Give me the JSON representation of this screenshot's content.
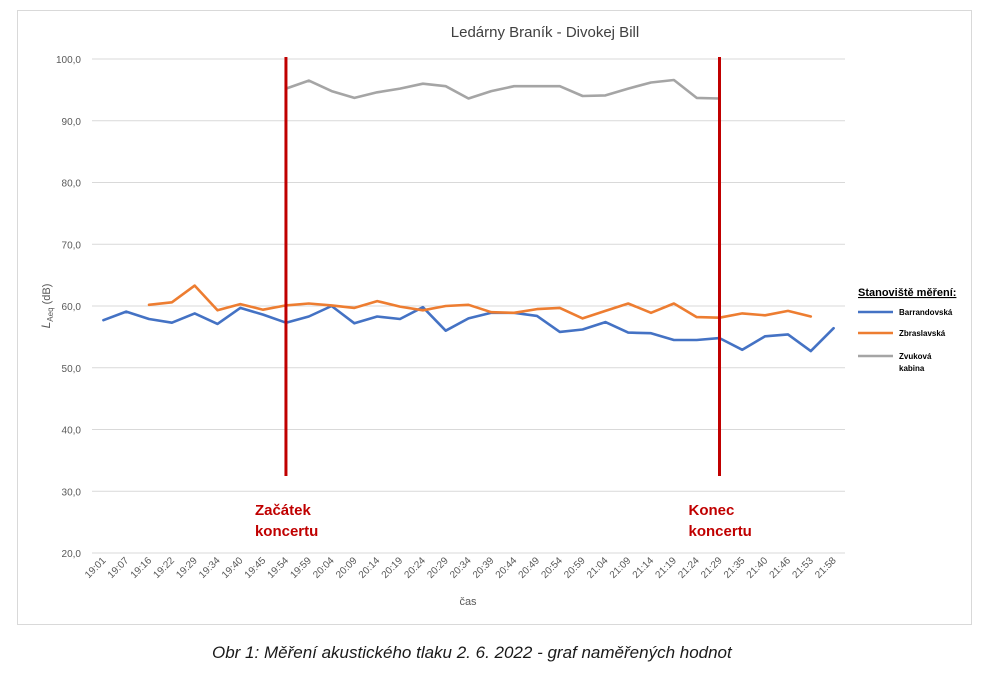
{
  "caption": "Obr 1: Měření akustického tlaku 2. 6. 2022 - graf naměřených hodnot",
  "chart_data": {
    "type": "line",
    "title": "Ledárny Braník - Divokej Bill",
    "xlabel": "čas",
    "ylabel_main": "L",
    "ylabel_sub": "Aeq",
    "ylabel_unit": " (dB)",
    "ylim": [
      20,
      100
    ],
    "yticks": [
      "20,0",
      "30,0",
      "40,0",
      "50,0",
      "60,0",
      "70,0",
      "80,0",
      "90,0",
      "100,0"
    ],
    "grid": "horizontal",
    "categories": [
      "19:01",
      "19:07",
      "19:16",
      "19:22",
      "19:29",
      "19:34",
      "19:40",
      "19:45",
      "19:54",
      "19:59",
      "20:04",
      "20:09",
      "20:14",
      "20:19",
      "20:24",
      "20:29",
      "20:34",
      "20:39",
      "20:44",
      "20:49",
      "20:54",
      "20:59",
      "21:04",
      "21:09",
      "21:14",
      "21:19",
      "21:24",
      "21:29",
      "21:35",
      "21:40",
      "21:46",
      "21:53",
      "21:58"
    ],
    "series": [
      {
        "name": "Barrandovská",
        "color": "#4472c4",
        "values": [
          57.7,
          59.1,
          57.9,
          57.3,
          58.8,
          57.1,
          59.7,
          58.6,
          57.3,
          58.3,
          60.0,
          57.2,
          58.3,
          57.9,
          59.8,
          56.0,
          58.0,
          58.9,
          58.9,
          58.4,
          55.8,
          56.2,
          57.4,
          55.7,
          55.6,
          54.5,
          54.5,
          54.8,
          52.9,
          55.1,
          55.4,
          52.7,
          56.4
        ]
      },
      {
        "name": "Zbraslavská",
        "color": "#ed7d31",
        "values": [
          null,
          null,
          60.2,
          60.6,
          63.3,
          59.3,
          60.3,
          59.4,
          60.1,
          60.4,
          60.1,
          59.7,
          60.8,
          59.9,
          59.3,
          60.0,
          60.2,
          59.0,
          58.9,
          59.5,
          59.7,
          58.0,
          59.2,
          60.4,
          58.9,
          60.4,
          58.2,
          58.1,
          58.8,
          58.5,
          59.2,
          58.3,
          null
        ]
      },
      {
        "name": "Zvuková kabina",
        "color": "#a5a5a5",
        "values": [
          null,
          null,
          null,
          null,
          null,
          null,
          null,
          null,
          95.2,
          96.5,
          94.8,
          93.7,
          94.6,
          95.2,
          96.0,
          95.6,
          93.6,
          94.8,
          95.6,
          95.6,
          95.6,
          94.0,
          94.1,
          95.2,
          96.2,
          96.6,
          93.7,
          93.6,
          null,
          null,
          null,
          null,
          null
        ]
      }
    ],
    "markers": [
      {
        "at": "19:54",
        "color": "#c00000",
        "label_lines": [
          "Začátek",
          "koncertu"
        ]
      },
      {
        "at": "21:29",
        "color": "#c00000",
        "label_lines": [
          "Konec",
          "koncertu"
        ]
      }
    ],
    "legend": {
      "title": "Stanoviště měření:",
      "position": "right",
      "entries": [
        {
          "lines": [
            "Barrandovská"
          ],
          "color": "#4472c4"
        },
        {
          "lines": [
            "Zbraslavská"
          ],
          "color": "#ed7d31"
        },
        {
          "lines": [
            "Zvuková",
            "kabina"
          ],
          "color": "#a5a5a5"
        }
      ]
    }
  }
}
